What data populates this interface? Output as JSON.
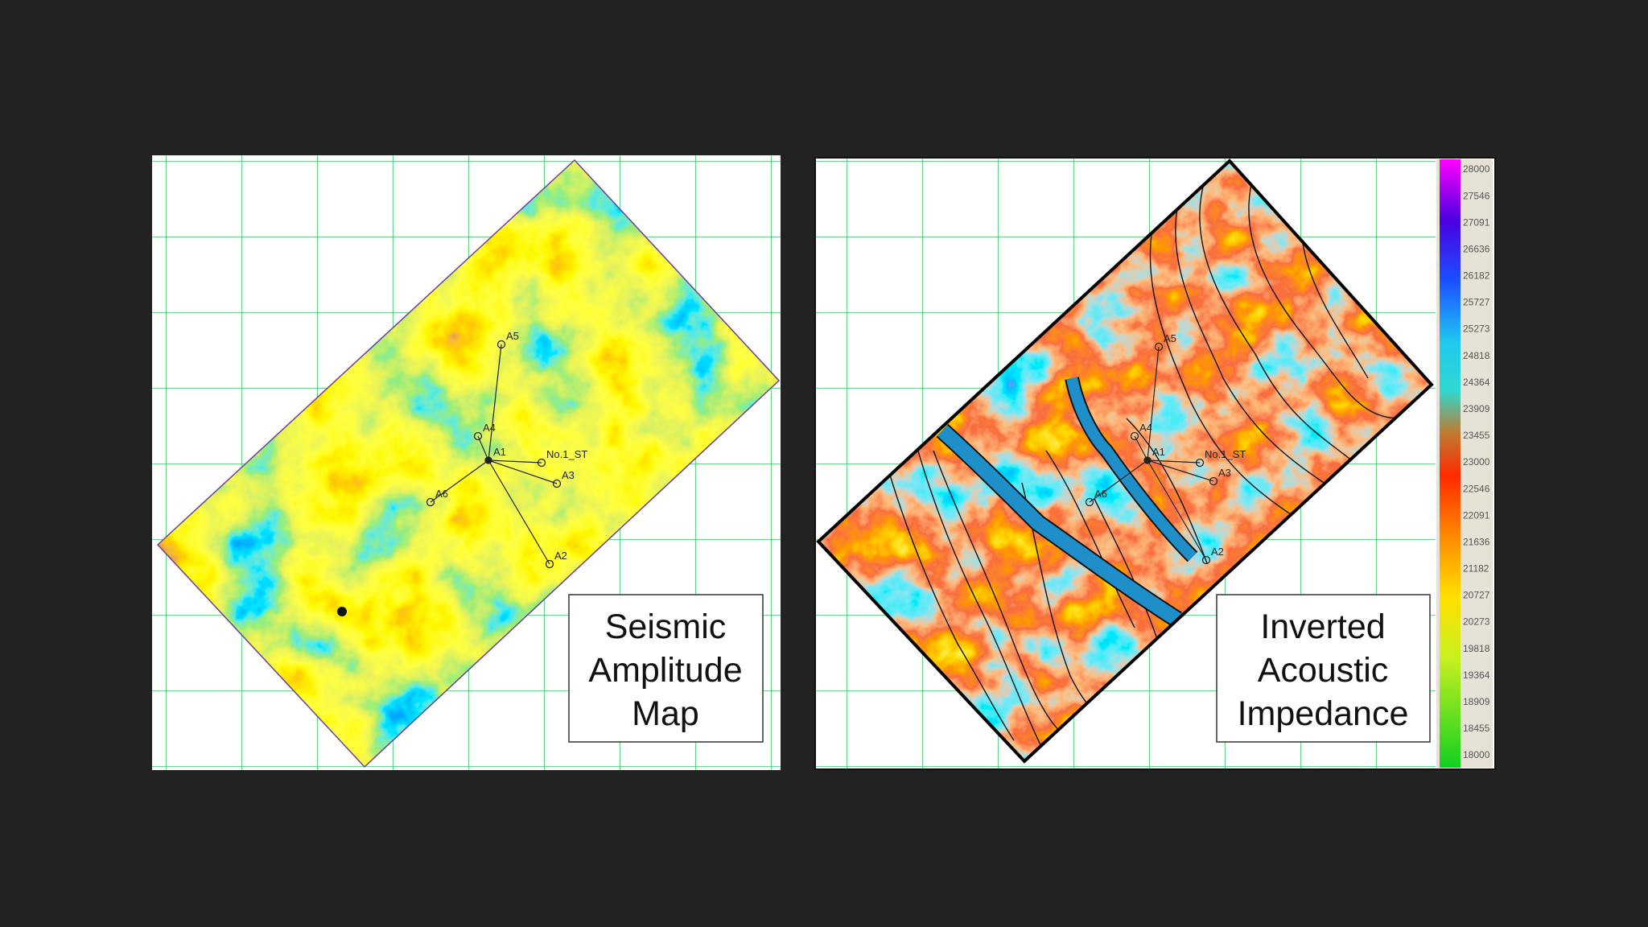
{
  "left_map": {
    "label": [
      "Seismic",
      "Amplitude",
      "Map"
    ],
    "wells": [
      "A1",
      "A2",
      "A3",
      "A4",
      "A5",
      "A6",
      "No.1_ST"
    ]
  },
  "right_map": {
    "label": [
      "Inverted",
      "Acoustic",
      "Impedance"
    ],
    "wells": [
      "A1",
      "A2",
      "A3",
      "A4",
      "A5",
      "A6",
      "No.1_ST"
    ],
    "colorbar_ticks": [
      28000,
      27546,
      27091,
      26636,
      26182,
      25727,
      25273,
      24818,
      24364,
      23909,
      23455,
      23000,
      22546,
      22091,
      21636,
      21182,
      20727,
      20273,
      19818,
      19364,
      18909,
      18455,
      18000
    ]
  }
}
